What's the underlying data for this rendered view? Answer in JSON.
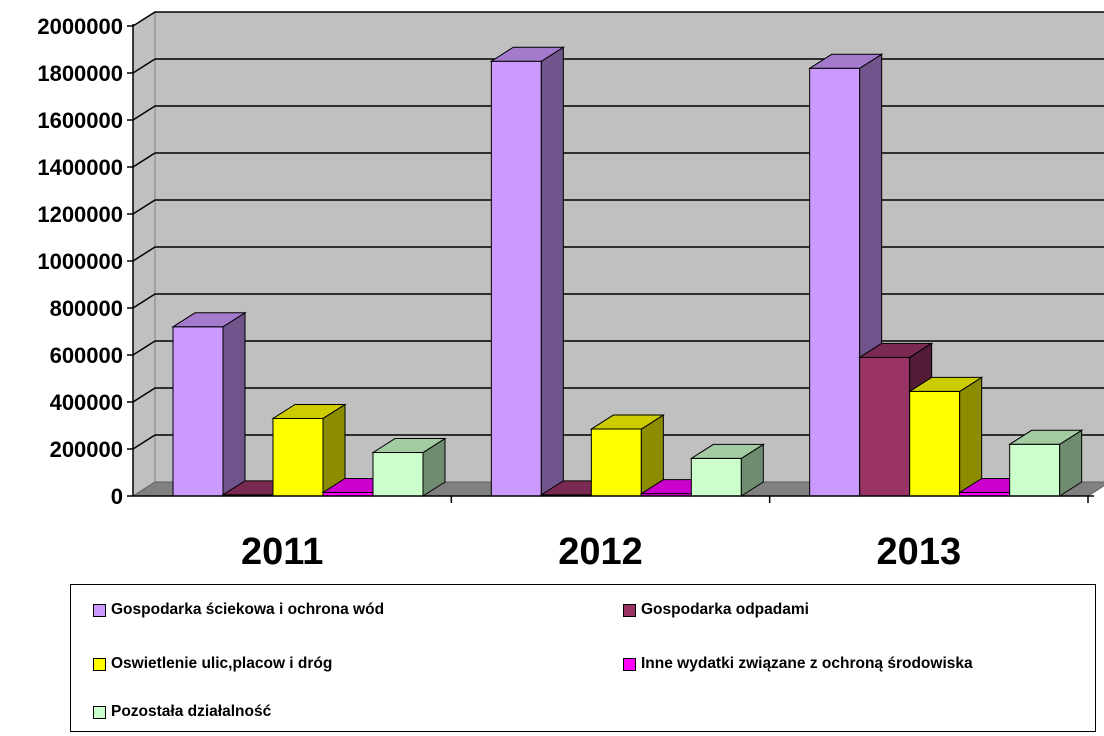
{
  "chart_data": {
    "type": "bar",
    "categories": [
      "2011",
      "2012",
      "2013"
    ],
    "ylim": [
      0,
      2000000
    ],
    "yticks": [
      "0",
      "200000",
      "400000",
      "600000",
      "800000",
      "1000000",
      "1200000",
      "1400000",
      "1600000",
      "1800000",
      "2000000"
    ],
    "grid": true,
    "legend_position": "bottom",
    "series": [
      {
        "name": "Gospodarka ściekowa i ochrona wód",
        "color": "#cc99ff",
        "values": [
          720000,
          1850000,
          1820000
        ]
      },
      {
        "name": "Gospodarka odpadami",
        "color": "#993366",
        "values": [
          5000,
          5000,
          590000
        ]
      },
      {
        "name": "Oswietlenie ulic,placow i dróg",
        "color": "#ffff00",
        "values": [
          330000,
          285000,
          445000
        ]
      },
      {
        "name": "Inne wydatki związane z ochroną środowiska",
        "color": "#ff00ff",
        "values": [
          15000,
          10000,
          15000
        ]
      },
      {
        "name": "Pozostała działalność",
        "color": "#ccffcc",
        "values": [
          185000,
          160000,
          220000
        ]
      }
    ]
  }
}
